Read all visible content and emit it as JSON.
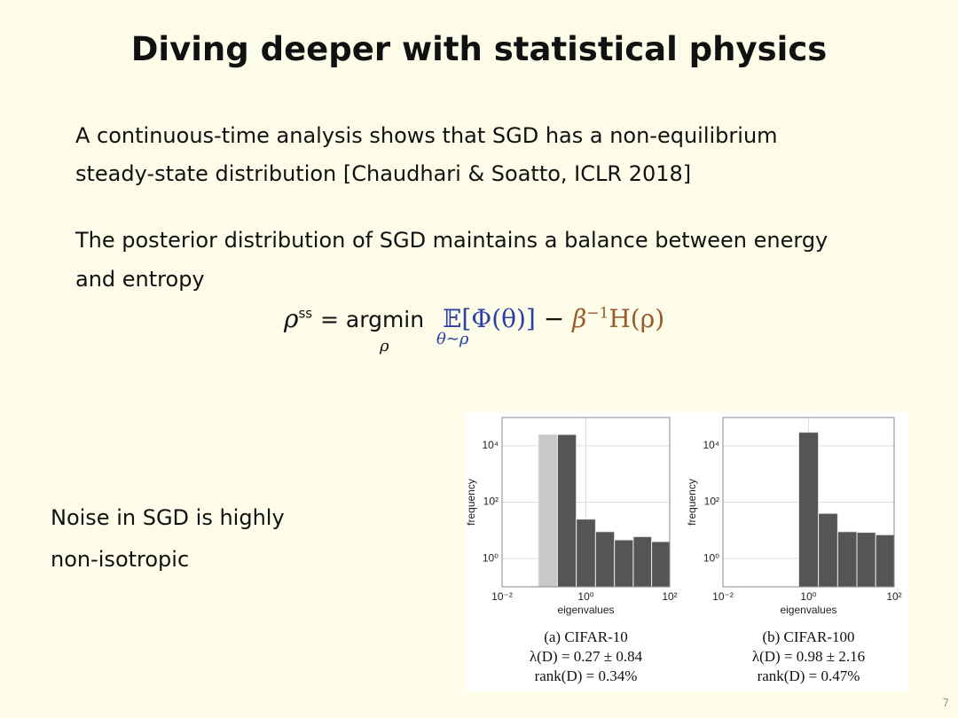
{
  "slide": {
    "title": "Diving deeper with statistical physics",
    "paragraphs": [
      [
        "A continuous-time analysis shows that SGD has a non-equilibrium",
        "steady-state distribution [Chaudhari & Soatto, ICLR 2018]"
      ],
      [
        "The posterior distribution of SGD maintains a balance between energy",
        "and entropy"
      ]
    ],
    "formula": {
      "lhs": "ρ",
      "lhs_sup": "ss",
      "op": "= argmin",
      "under": "ρ",
      "expect": "𝔼",
      "expect_sub": "θ∼ρ",
      "energy": "[Φ(θ)]",
      "minus": "−",
      "beta": "β",
      "beta_sup": "−1",
      "entropy": "H(ρ)"
    },
    "note": [
      "Noise in SGD is highly",
      "non-isotropic"
    ],
    "page_number": "7"
  },
  "chart_data": [
    {
      "type": "histogram",
      "xlabel": "eigenvalues",
      "ylabel": "frequency",
      "log_x": true,
      "log_y": true,
      "grid": true,
      "bins": [
        0.074,
        0.21,
        0.59,
        1.7,
        4.8,
        13.5,
        37,
        100
      ],
      "values": [
        25000,
        25000,
        25,
        9,
        4.6,
        6,
        4
      ],
      "colors": [
        "#c9c9c9",
        "#555555",
        "#555555",
        "#555555",
        "#555555",
        "#555555",
        "#555555"
      ],
      "xlim": [
        0.01,
        100
      ],
      "ylim": [
        0.1,
        100000
      ],
      "xticks": [
        {
          "value": 0.01,
          "label": "10⁻²"
        },
        {
          "value": 1,
          "label": "10⁰"
        },
        {
          "value": 100,
          "label": "10²"
        }
      ],
      "yticks": [
        {
          "value": 1,
          "label": "10⁰"
        },
        {
          "value": 100,
          "label": "10²"
        },
        {
          "value": 10000,
          "label": "10⁴"
        }
      ],
      "caption": [
        "(a) CIFAR-10",
        "λ(D) = 0.27 ± 0.84",
        "rank(D) = 0.34%"
      ]
    },
    {
      "type": "histogram",
      "xlabel": "eigenvalues",
      "ylabel": "frequency",
      "log_x": true,
      "log_y": true,
      "grid": true,
      "bins": [
        0.59,
        1.7,
        4.8,
        13.5,
        37,
        100
      ],
      "values": [
        30000,
        40,
        9,
        8.5,
        7
      ],
      "colors": [
        "#555555",
        "#555555",
        "#555555",
        "#555555",
        "#555555"
      ],
      "xlim": [
        0.01,
        100
      ],
      "ylim": [
        0.1,
        100000
      ],
      "xticks": [
        {
          "value": 0.01,
          "label": "10⁻²"
        },
        {
          "value": 1,
          "label": "10⁰"
        },
        {
          "value": 100,
          "label": "10²"
        }
      ],
      "yticks": [
        {
          "value": 1,
          "label": "10⁰"
        },
        {
          "value": 100,
          "label": "10²"
        },
        {
          "value": 10000,
          "label": "10⁴"
        }
      ],
      "caption": [
        "(b) CIFAR-100",
        "λ(D) = 0.98 ± 2.16",
        "rank(D) = 0.47%"
      ]
    }
  ]
}
